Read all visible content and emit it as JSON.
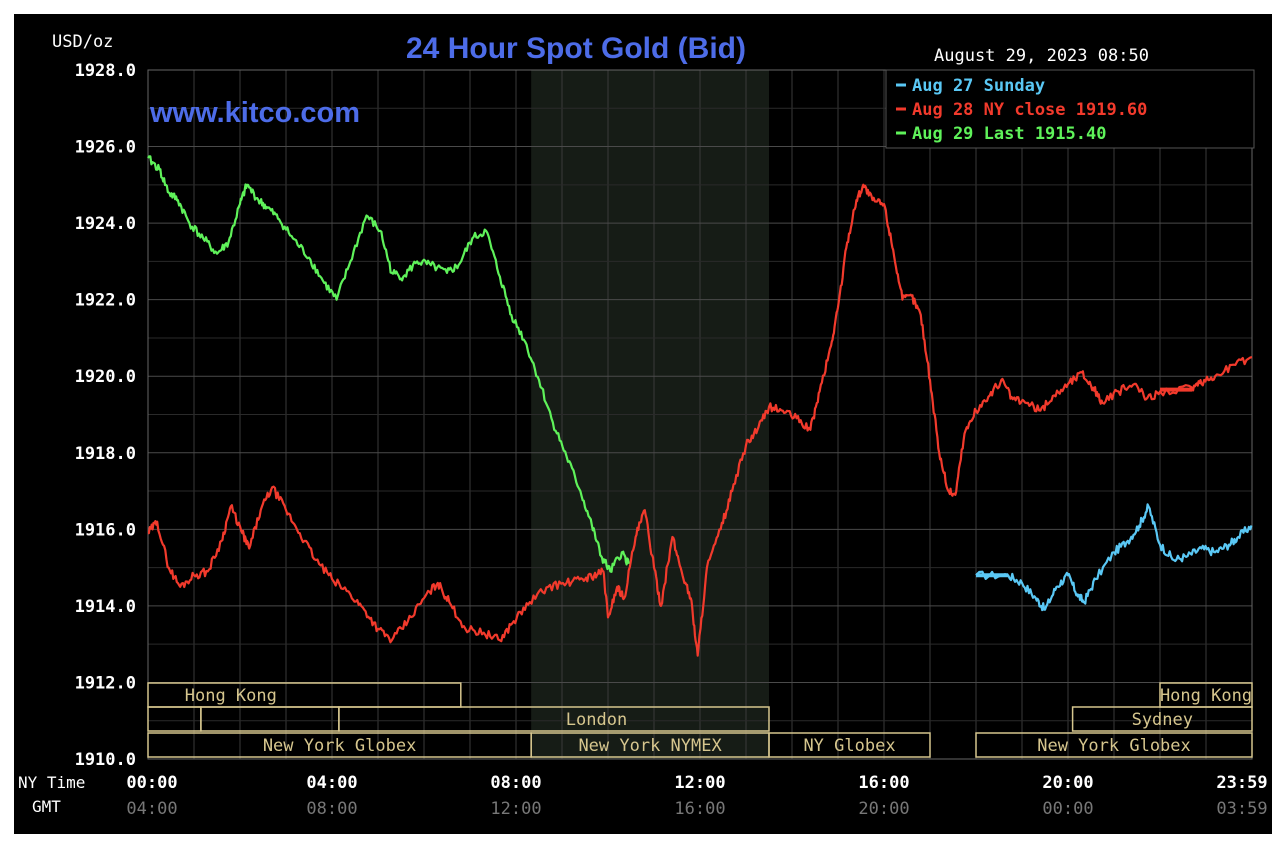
{
  "header": {
    "title": "24 Hour Spot Gold (Bid)",
    "unit": "USD/oz",
    "timestamp": "August 29, 2023 08:50",
    "watermark": "www.kitco.com"
  },
  "legend": [
    {
      "label": "Aug 27 Sunday",
      "color": "#5ac8f5"
    },
    {
      "label": "Aug 28 NY close 1919.60",
      "color": "#f23a2c"
    },
    {
      "label": "Aug 29 Last 1915.40",
      "color": "#5ff25a"
    }
  ],
  "axis": {
    "x_row1_label": "NY Time",
    "x_row2_label": "GMT",
    "ny_ticks": [
      "00:00",
      "04:00",
      "08:00",
      "12:00",
      "16:00",
      "20:00",
      "23:59"
    ],
    "gmt_ticks": [
      "04:00",
      "08:00",
      "12:00",
      "16:00",
      "20:00",
      "00:00",
      "03:59"
    ],
    "y_ticks": [
      "1928.0",
      "1926.0",
      "1924.0",
      "1922.0",
      "1920.0",
      "1918.0",
      "1916.0",
      "1914.0",
      "1912.0",
      "1910.0"
    ]
  },
  "sessions": [
    {
      "label": "Hong Kong"
    },
    {
      "label": "London"
    },
    {
      "label": "New York Globex"
    },
    {
      "label": "New York NYMEX"
    },
    {
      "label": "NY Globex"
    },
    {
      "label": "Hong Kong"
    },
    {
      "label": "Sydney"
    },
    {
      "label": "New York Globex"
    }
  ],
  "chart_data": {
    "type": "line",
    "title": "24 Hour Spot Gold (Bid)",
    "ylabel": "USD/oz",
    "xlabel": "NY Time",
    "ylim": [
      1910,
      1928
    ],
    "xlim": [
      0,
      24
    ],
    "grid": true,
    "legend_position": "top-right",
    "series": [
      {
        "name": "Aug 27 Sunday",
        "color": "#5ac8f5",
        "points": [
          [
            18.0,
            1914.8
          ],
          [
            18.7,
            1914.8
          ],
          [
            19.0,
            1914.6
          ],
          [
            19.3,
            1914.2
          ],
          [
            19.5,
            1913.9
          ],
          [
            19.75,
            1914.5
          ],
          [
            20.0,
            1914.8
          ],
          [
            20.2,
            1914.3
          ],
          [
            20.35,
            1914.1
          ],
          [
            20.6,
            1914.7
          ],
          [
            21.0,
            1915.4
          ],
          [
            21.3,
            1915.7
          ],
          [
            21.55,
            1916.1
          ],
          [
            21.75,
            1916.6
          ],
          [
            22.0,
            1915.6
          ],
          [
            22.3,
            1915.2
          ],
          [
            22.6,
            1915.3
          ],
          [
            22.9,
            1915.5
          ],
          [
            23.2,
            1915.4
          ],
          [
            23.5,
            1915.6
          ],
          [
            23.7,
            1915.8
          ],
          [
            23.99,
            1916.1
          ]
        ]
      },
      {
        "name": "Aug 28 NY close 1919.60",
        "color": "#f23a2c",
        "points": [
          [
            0.0,
            1915.9
          ],
          [
            0.2,
            1916.2
          ],
          [
            0.45,
            1915.0
          ],
          [
            0.7,
            1914.5
          ],
          [
            1.0,
            1914.8
          ],
          [
            1.3,
            1914.9
          ],
          [
            1.6,
            1915.7
          ],
          [
            1.8,
            1916.6
          ],
          [
            2.05,
            1915.9
          ],
          [
            2.2,
            1915.5
          ],
          [
            2.45,
            1916.5
          ],
          [
            2.7,
            1917.1
          ],
          [
            3.0,
            1916.5
          ],
          [
            3.3,
            1915.9
          ],
          [
            3.65,
            1915.2
          ],
          [
            4.0,
            1914.7
          ],
          [
            4.4,
            1914.3
          ],
          [
            4.7,
            1913.9
          ],
          [
            5.0,
            1913.4
          ],
          [
            5.3,
            1913.1
          ],
          [
            5.65,
            1913.6
          ],
          [
            6.0,
            1914.2
          ],
          [
            6.3,
            1914.6
          ],
          [
            6.55,
            1914.1
          ],
          [
            6.9,
            1913.4
          ],
          [
            7.3,
            1913.3
          ],
          [
            7.65,
            1913.1
          ],
          [
            7.95,
            1913.6
          ],
          [
            8.3,
            1914.1
          ],
          [
            8.7,
            1914.5
          ],
          [
            9.1,
            1914.6
          ],
          [
            9.45,
            1914.7
          ],
          [
            9.7,
            1914.8
          ],
          [
            9.9,
            1914.9
          ],
          [
            10.0,
            1913.7
          ],
          [
            10.2,
            1914.5
          ],
          [
            10.35,
            1914.2
          ],
          [
            10.6,
            1915.8
          ],
          [
            10.8,
            1916.5
          ],
          [
            11.0,
            1915.0
          ],
          [
            11.15,
            1914.0
          ],
          [
            11.4,
            1915.8
          ],
          [
            11.6,
            1914.9
          ],
          [
            11.8,
            1914.2
          ],
          [
            11.95,
            1912.7
          ],
          [
            12.15,
            1915.0
          ],
          [
            12.45,
            1916.0
          ],
          [
            12.7,
            1917.0
          ],
          [
            13.0,
            1918.2
          ],
          [
            13.25,
            1918.6
          ],
          [
            13.5,
            1919.2
          ],
          [
            13.8,
            1919.1
          ],
          [
            14.1,
            1918.9
          ],
          [
            14.4,
            1918.6
          ],
          [
            14.6,
            1919.6
          ],
          [
            14.85,
            1920.8
          ],
          [
            15.0,
            1921.8
          ],
          [
            15.2,
            1923.5
          ],
          [
            15.4,
            1924.6
          ],
          [
            15.55,
            1925.0
          ],
          [
            15.75,
            1924.6
          ],
          [
            16.0,
            1924.5
          ],
          [
            16.2,
            1923.3
          ],
          [
            16.4,
            1922.0
          ],
          [
            16.6,
            1922.1
          ],
          [
            16.8,
            1921.6
          ],
          [
            17.0,
            1919.9
          ],
          [
            17.2,
            1918.0
          ],
          [
            17.4,
            1917.0
          ],
          [
            17.55,
            1916.9
          ],
          [
            17.75,
            1918.5
          ],
          [
            18.0,
            1919.1
          ],
          [
            18.3,
            1919.5
          ],
          [
            18.55,
            1919.9
          ],
          [
            18.8,
            1919.4
          ],
          [
            19.1,
            1919.3
          ],
          [
            19.4,
            1919.1
          ],
          [
            19.7,
            1919.5
          ],
          [
            20.0,
            1919.8
          ],
          [
            20.3,
            1920.1
          ],
          [
            20.55,
            1919.7
          ],
          [
            20.75,
            1919.3
          ],
          [
            21.1,
            1919.6
          ],
          [
            21.45,
            1919.8
          ],
          [
            21.7,
            1919.4
          ],
          [
            22.0,
            1919.6
          ],
          [
            22.7,
            1919.7
          ],
          [
            22.9,
            1919.8
          ],
          [
            23.2,
            1920.0
          ],
          [
            23.6,
            1920.3
          ],
          [
            24.0,
            1920.5
          ]
        ]
      },
      {
        "name": "Aug 29 Last 1915.40",
        "color": "#5ff25a",
        "points": [
          [
            0.0,
            1925.7
          ],
          [
            0.25,
            1925.4
          ],
          [
            0.45,
            1924.8
          ],
          [
            0.65,
            1924.6
          ],
          [
            0.9,
            1924.0
          ],
          [
            1.2,
            1923.6
          ],
          [
            1.5,
            1923.2
          ],
          [
            1.75,
            1923.5
          ],
          [
            2.0,
            1924.5
          ],
          [
            2.15,
            1925.0
          ],
          [
            2.4,
            1924.6
          ],
          [
            2.6,
            1924.4
          ],
          [
            2.85,
            1924.1
          ],
          [
            3.15,
            1923.6
          ],
          [
            3.5,
            1923.1
          ],
          [
            3.8,
            1922.5
          ],
          [
            4.1,
            1922.0
          ],
          [
            4.4,
            1923.0
          ],
          [
            4.75,
            1924.2
          ],
          [
            5.05,
            1923.8
          ],
          [
            5.3,
            1922.7
          ],
          [
            5.55,
            1922.6
          ],
          [
            5.85,
            1923.0
          ],
          [
            6.15,
            1922.9
          ],
          [
            6.5,
            1922.7
          ],
          [
            6.75,
            1922.9
          ],
          [
            7.05,
            1923.6
          ],
          [
            7.35,
            1923.8
          ],
          [
            7.65,
            1922.6
          ],
          [
            7.9,
            1921.6
          ],
          [
            8.2,
            1920.9
          ],
          [
            8.5,
            1919.9
          ],
          [
            8.8,
            1918.8
          ],
          [
            9.1,
            1917.9
          ],
          [
            9.4,
            1917.0
          ],
          [
            9.65,
            1916.1
          ],
          [
            9.85,
            1915.3
          ],
          [
            10.05,
            1914.9
          ],
          [
            10.3,
            1915.4
          ],
          [
            10.45,
            1915.1
          ]
        ]
      }
    ]
  }
}
